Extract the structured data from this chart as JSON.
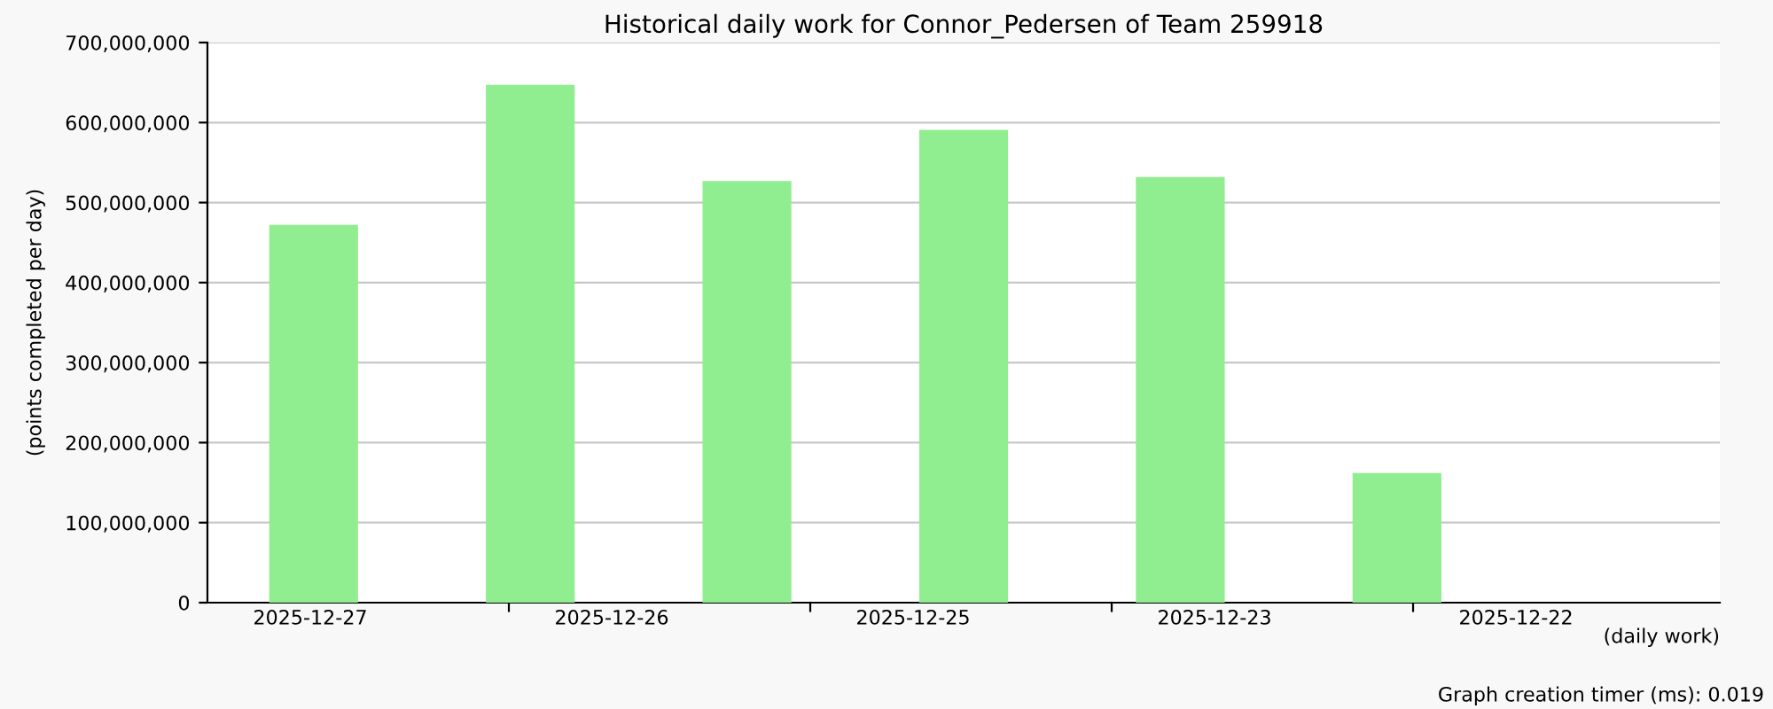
{
  "chart_data": {
    "type": "bar",
    "title": "Historical daily work for Connor_Pedersen of Team 259918",
    "ylabel": "(points completed per day)",
    "categories": [
      null,
      null,
      null,
      null,
      null,
      null
    ],
    "values": [
      472000000,
      647000000,
      527000000,
      591000000,
      532000000,
      162000000
    ],
    "color": "#90ee90",
    "ylim": [
      0,
      700000000
    ],
    "yticks": [
      {
        "value": 0,
        "label": "0"
      },
      {
        "value": 100000000,
        "label": "100,000,000"
      },
      {
        "value": 200000000,
        "label": "200,000,000"
      },
      {
        "value": 300000000,
        "label": "300,000,000"
      },
      {
        "value": 400000000,
        "label": "400,000,000"
      },
      {
        "value": 500000000,
        "label": "500,000,000"
      },
      {
        "value": 600000000,
        "label": "600,000,000"
      },
      {
        "value": 700000000,
        "label": "700,000,000"
      }
    ],
    "grid": "y",
    "annotations": [
      "2025-12-27",
      "2025-12-26",
      "2025-12-25",
      "2025-12-23",
      "2025-12-22",
      "(daily work)",
      "Graph creation timer (ms): 0.019"
    ]
  }
}
